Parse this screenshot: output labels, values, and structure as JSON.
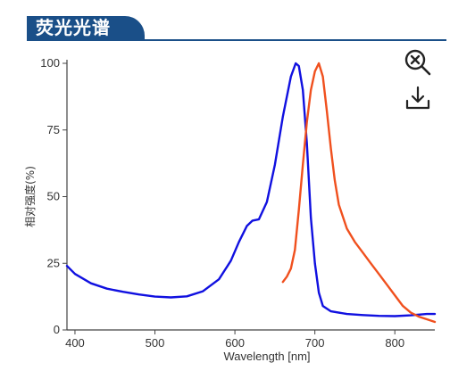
{
  "header": {
    "title": "荧光光谱"
  },
  "toolbar": {
    "zoom_icon": "zoom-reset-icon",
    "download_icon": "download-icon"
  },
  "colors": {
    "excitation": "#1010e0",
    "emission": "#f0501e",
    "header_bg": "#1a4f88"
  },
  "chart_data": {
    "type": "line",
    "title": "",
    "xlabel": "Wavelength [nm]",
    "ylabel": "相对强度(%)",
    "xlim": [
      390,
      850
    ],
    "ylim": [
      0,
      100
    ],
    "xticks": [
      400,
      500,
      600,
      700,
      800
    ],
    "yticks": [
      0,
      25,
      50,
      75,
      100
    ],
    "grid": false,
    "legend": "none",
    "series": [
      {
        "color": "#1010e0",
        "x": [
          390,
          400,
          420,
          440,
          460,
          480,
          500,
          520,
          540,
          560,
          580,
          595,
          605,
          615,
          622,
          630,
          640,
          650,
          660,
          670,
          676,
          680,
          685,
          690,
          695,
          700,
          705,
          710,
          720,
          740,
          760,
          780,
          800,
          820,
          840,
          850
        ],
        "y": [
          24,
          21,
          17.5,
          15.5,
          14.3,
          13.3,
          12.5,
          12.2,
          12.6,
          14.5,
          19,
          26,
          33,
          39,
          41,
          41.5,
          48,
          62,
          80,
          95,
          100,
          99,
          90,
          70,
          42,
          25,
          14,
          9,
          7,
          6,
          5.6,
          5.3,
          5.2,
          5.5,
          6,
          6
        ]
      },
      {
        "color": "#f0501e",
        "x": [
          660,
          665,
          670,
          675,
          680,
          685,
          690,
          695,
          700,
          705,
          710,
          715,
          720,
          725,
          730,
          740,
          750,
          760,
          770,
          780,
          790,
          800,
          810,
          820,
          830,
          840,
          850
        ],
        "y": [
          18,
          20,
          23,
          30,
          45,
          62,
          78,
          90,
          97,
          100,
          95,
          82,
          68,
          56,
          47,
          38,
          33,
          29,
          25,
          21,
          17,
          13,
          9,
          6.5,
          5,
          4,
          3
        ]
      }
    ]
  }
}
